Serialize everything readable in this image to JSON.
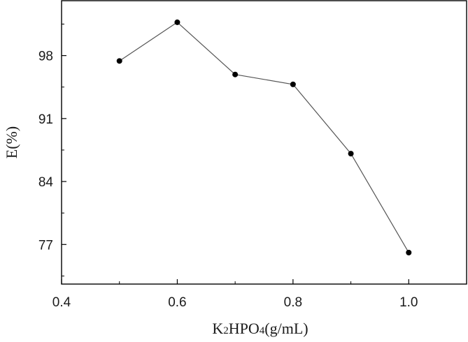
{
  "chart_data": {
    "type": "line",
    "title": "",
    "xlabel": {
      "main": "K",
      "sub": "2",
      "mid": "HPO",
      "sub2": "4",
      "tail": "(g/mL)"
    },
    "ylabel": "E(%)",
    "x": [
      0.5,
      0.6,
      0.7,
      0.8,
      0.9,
      1.0
    ],
    "series": [
      {
        "values": [
          97.4,
          101.7,
          95.9,
          94.8,
          87.1,
          76.1
        ]
      }
    ],
    "xlim": [
      0.4,
      1.1
    ],
    "ylim": [
      72.6,
      104.1
    ],
    "xticks": [
      0.4,
      0.6,
      0.8,
      1.0
    ],
    "xtick_labels": [
      "0.4",
      "0.6",
      "0.8",
      "1.0"
    ],
    "yticks": [
      77,
      84,
      91,
      98
    ],
    "ytick_labels": [
      "77",
      "84",
      "91",
      "98"
    ],
    "grid": false,
    "legend": "none",
    "colors": {
      "line": "#555555",
      "marker": "#000000",
      "axes": "#000000"
    }
  }
}
